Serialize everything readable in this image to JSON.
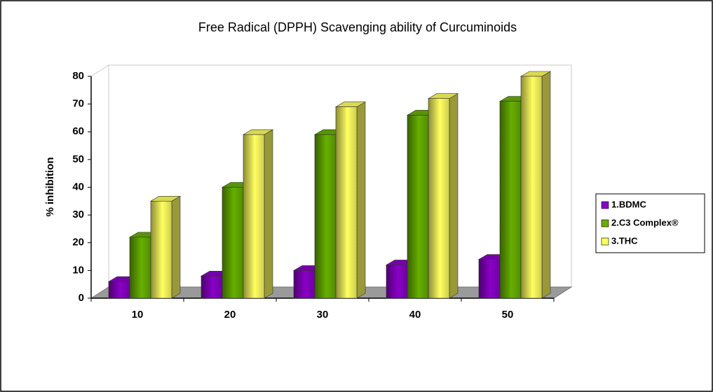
{
  "chart_data": {
    "type": "bar3d",
    "title": "Free Radical (DPPH) Scavenging ability of Curcuminoids",
    "y_label": "% inhibition",
    "categories": [
      "10",
      "20",
      "30",
      "40",
      "50"
    ],
    "series": [
      {
        "name": "1.BDMC",
        "color": "#8a00c8",
        "values": [
          6,
          8,
          10,
          12,
          14
        ]
      },
      {
        "name": "2.C3 Complex®",
        "color": "#66b000",
        "values": [
          22,
          40,
          59,
          66,
          71
        ]
      },
      {
        "name": "3.THC",
        "color": "#ffff60",
        "values": [
          35,
          59,
          69,
          72,
          80
        ]
      }
    ],
    "ylim": [
      0,
      80
    ],
    "yticks": [
      0,
      10,
      20,
      30,
      40,
      50,
      60,
      70,
      80
    ],
    "legend": "right"
  }
}
